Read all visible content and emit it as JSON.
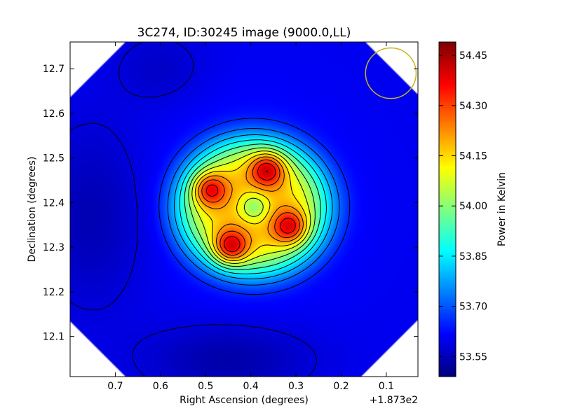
{
  "chart_data": {
    "type": "heatmap",
    "title": "3C274, ID:30245 image (9000.0,LL)",
    "xlabel": "Right Ascension (degrees)",
    "ylabel": "Declination (degrees)",
    "x_offset_label": "+1.873e2",
    "xlim": [
      0.8,
      0.03
    ],
    "ylim": [
      12.01,
      12.76
    ],
    "x_ticks": [
      0.7,
      0.6,
      0.5,
      0.4,
      0.3,
      0.2,
      0.1
    ],
    "x_tick_labels": [
      "0.7",
      "0.6",
      "0.5",
      "0.4",
      "0.3",
      "0.2",
      "0.1"
    ],
    "y_ticks": [
      12.1,
      12.2,
      12.3,
      12.4,
      12.5,
      12.6,
      12.7
    ],
    "y_tick_labels": [
      "12.1",
      "12.2",
      "12.3",
      "12.4",
      "12.5",
      "12.6",
      "12.7"
    ],
    "colorbar": {
      "label": "Power in Kelvin",
      "range": [
        53.49,
        54.49
      ],
      "ticks": [
        53.55,
        53.7,
        53.85,
        54.0,
        54.15,
        54.3,
        54.45
      ],
      "tick_labels": [
        "53.55",
        "53.70",
        "53.85",
        "54.00",
        "54.15",
        "54.30",
        "54.45"
      ]
    },
    "colormap": "jet",
    "contours": true,
    "beam_circle": {
      "ra": 0.09,
      "dec": 12.69,
      "radius_deg": 0.056,
      "color": "#c8b420"
    },
    "peaks": [
      {
        "ra": 0.492,
        "dec": 12.43,
        "value": 54.42
      },
      {
        "ra": 0.363,
        "dec": 12.475,
        "value": 54.44
      },
      {
        "ra": 0.313,
        "dec": 12.345,
        "value": 54.42
      },
      {
        "ra": 0.445,
        "dec": 12.3,
        "value": 54.46
      }
    ],
    "local_minimum": {
      "ra": 0.393,
      "dec": 12.39,
      "value": 53.98
    }
  }
}
